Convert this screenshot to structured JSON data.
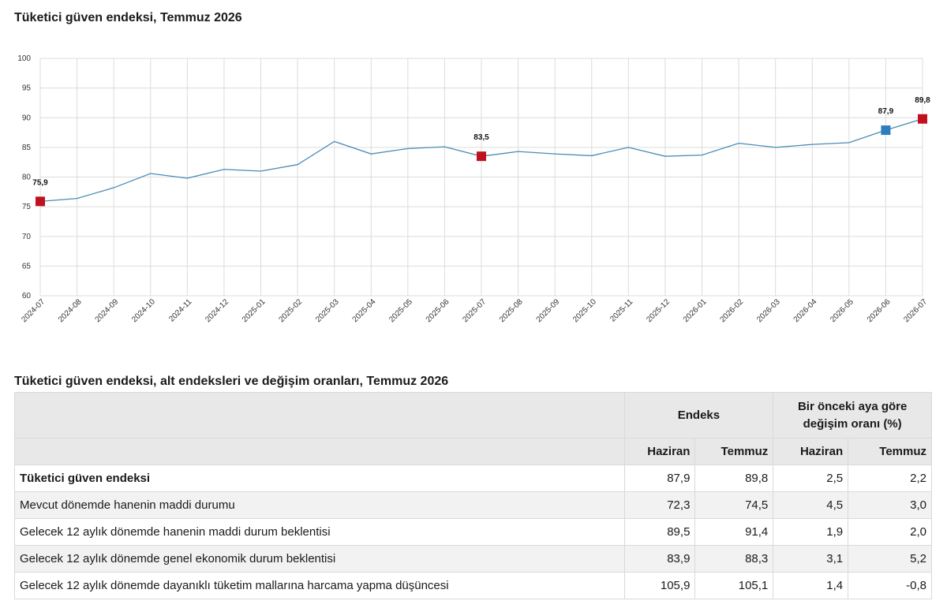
{
  "chart_title": "Tüketici güven endeksi, Temmuz 2026",
  "chart_data": {
    "type": "line",
    "title": "Tüketici güven endeksi, Temmuz 2026",
    "xlabel": "",
    "ylabel": "",
    "categories": [
      "2024-07",
      "2024-08",
      "2024-09",
      "2024-10",
      "2024-11",
      "2024-12",
      "2025-01",
      "2025-02",
      "2025-03",
      "2025-04",
      "2025-05",
      "2025-06",
      "2025-07",
      "2025-08",
      "2025-09",
      "2025-10",
      "2025-11",
      "2025-12",
      "2026-01",
      "2026-02",
      "2026-03",
      "2026-04",
      "2026-05",
      "2026-06",
      "2026-07"
    ],
    "series": [
      {
        "values": [
          75.9,
          76.4,
          78.2,
          80.6,
          79.8,
          81.3,
          81.0,
          82.1,
          86.0,
          83.9,
          84.8,
          85.1,
          83.5,
          84.3,
          83.9,
          83.6,
          85.0,
          83.5,
          83.7,
          85.7,
          85.0,
          85.5,
          85.8,
          87.9,
          89.8
        ]
      }
    ],
    "highlighted_points": [
      {
        "index": 0,
        "label": "75,9",
        "color": "#c0111f"
      },
      {
        "index": 12,
        "label": "83,5",
        "color": "#c0111f"
      },
      {
        "index": 23,
        "label": "87,9",
        "color": "#2e7ebf"
      },
      {
        "index": 24,
        "label": "89,8",
        "color": "#c0111f"
      }
    ],
    "ylim": [
      60,
      100
    ],
    "yticks": [
      60,
      65,
      70,
      75,
      80,
      85,
      90,
      95,
      100
    ],
    "grid": true,
    "line_color": "#4a8bb5"
  },
  "table": {
    "title": "Tüketici güven endeksi, alt endeksleri ve değişim oranları, Temmuz 2026",
    "group_endeks": "Endeks",
    "group_change": "Bir önceki aya göre değişim oranı (%)",
    "col_headers": [
      "Haziran",
      "Temmuz",
      "Haziran",
      "Temmuz"
    ],
    "rows": [
      {
        "label": "Tüketici güven endeksi",
        "values": [
          "87,9",
          "89,8",
          "2,5",
          "2,2"
        ],
        "bold": true
      },
      {
        "label": "Mevcut dönemde hanenin maddi durumu",
        "values": [
          "72,3",
          "74,5",
          "4,5",
          "3,0"
        ]
      },
      {
        "label": "Gelecek 12 aylık dönemde hanenin maddi durum beklentisi",
        "values": [
          "89,5",
          "91,4",
          "1,9",
          "2,0"
        ]
      },
      {
        "label": "Gelecek 12 aylık dönemde genel ekonomik durum beklentisi",
        "values": [
          "83,9",
          "88,3",
          "3,1",
          "5,2"
        ]
      },
      {
        "label": "Gelecek 12 aylık dönemde dayanıklı tüketim mallarına harcama yapma düşüncesi",
        "values": [
          "105,9",
          "105,1",
          "1,4",
          "-0,8"
        ]
      }
    ]
  }
}
